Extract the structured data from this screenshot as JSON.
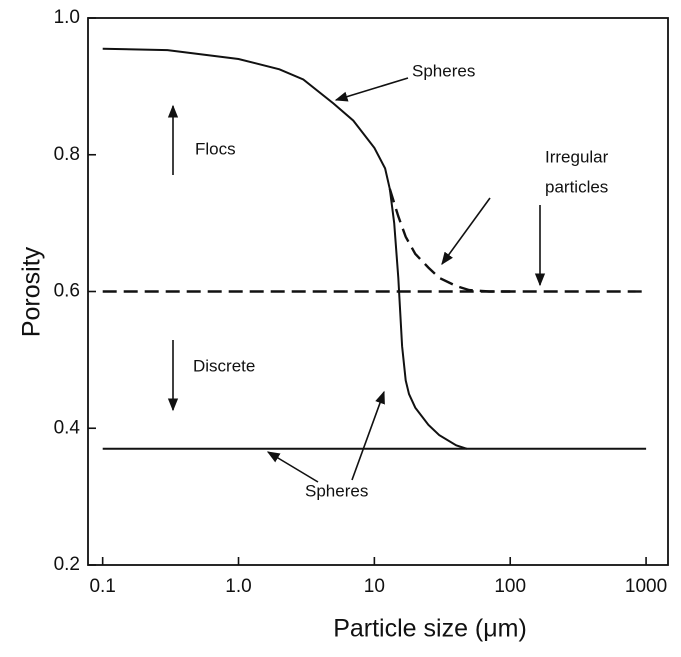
{
  "chart_data": {
    "type": "line",
    "x_label": "Particle size (μm)",
    "y_label": "Porosity",
    "xscale": "log",
    "xlim": [
      0.078,
      1450
    ],
    "ylim": [
      0.2,
      1.0
    ],
    "xticks": [
      0.1,
      {
        "value": 1,
        "label": "1.0"
      },
      10,
      100,
      1000
    ],
    "yticks": [
      0.2,
      0.4,
      0.6,
      0.8,
      {
        "value": 1,
        "label": "1.0"
      }
    ],
    "grid": false,
    "series": [
      {
        "color": "#111111",
        "dash": false,
        "x": [
          0.1,
          0.3,
          1,
          2,
          3,
          5,
          7,
          10,
          12,
          13,
          14,
          15,
          16,
          17,
          18,
          20,
          25,
          30,
          40,
          48
        ],
        "values": [
          0.955,
          0.953,
          0.94,
          0.925,
          0.91,
          0.875,
          0.85,
          0.81,
          0.78,
          0.75,
          0.7,
          0.62,
          0.52,
          0.47,
          0.45,
          0.43,
          0.405,
          0.39,
          0.375,
          0.37
        ]
      },
      {
        "color": "#111111",
        "dash": false,
        "x": [
          0.1,
          1000
        ],
        "values": [
          0.37,
          0.37
        ]
      },
      {
        "color": "#111111",
        "dash": true,
        "x": [
          13,
          15,
          17,
          20,
          25,
          30,
          40,
          50,
          70,
          100
        ],
        "values": [
          0.75,
          0.71,
          0.68,
          0.655,
          0.635,
          0.62,
          0.608,
          0.602,
          0.6,
          0.6
        ]
      },
      {
        "color": "#111111",
        "dash": true,
        "x": [
          0.1,
          1000
        ],
        "values": [
          0.6,
          0.6
        ]
      }
    ],
    "annotations": [
      "Spheres",
      "Irregular",
      "particles",
      "Flocs",
      "Discrete",
      "Spheres"
    ]
  }
}
